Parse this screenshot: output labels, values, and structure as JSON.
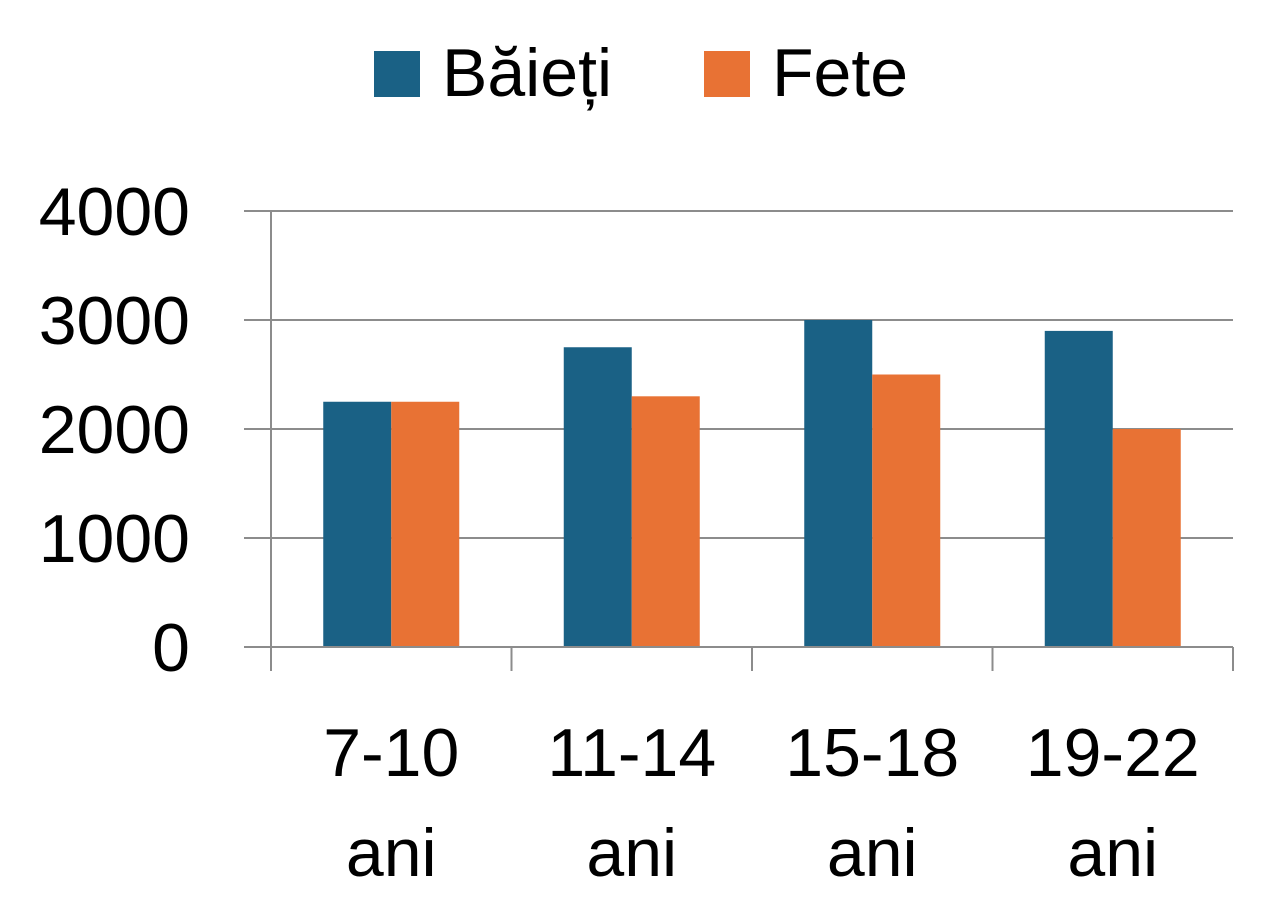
{
  "chart_data": {
    "type": "bar",
    "title": "",
    "xlabel": "",
    "ylabel": "",
    "categories": [
      [
        "7-10",
        "ani"
      ],
      [
        "11-14",
        "ani"
      ],
      [
        "15-18",
        "ani"
      ],
      [
        "19-22",
        "ani"
      ]
    ],
    "series": [
      {
        "name": "Băieți",
        "color": "#1a6185",
        "values": [
          2250,
          2750,
          3000,
          2900
        ]
      },
      {
        "name": "Fete",
        "color": "#e87234",
        "values": [
          2250,
          2300,
          2500,
          2000
        ]
      }
    ],
    "ylim": [
      0,
      4000
    ],
    "yticks": [
      0,
      1000,
      2000,
      3000,
      4000
    ],
    "grid": true,
    "legend_position": "top-center"
  }
}
